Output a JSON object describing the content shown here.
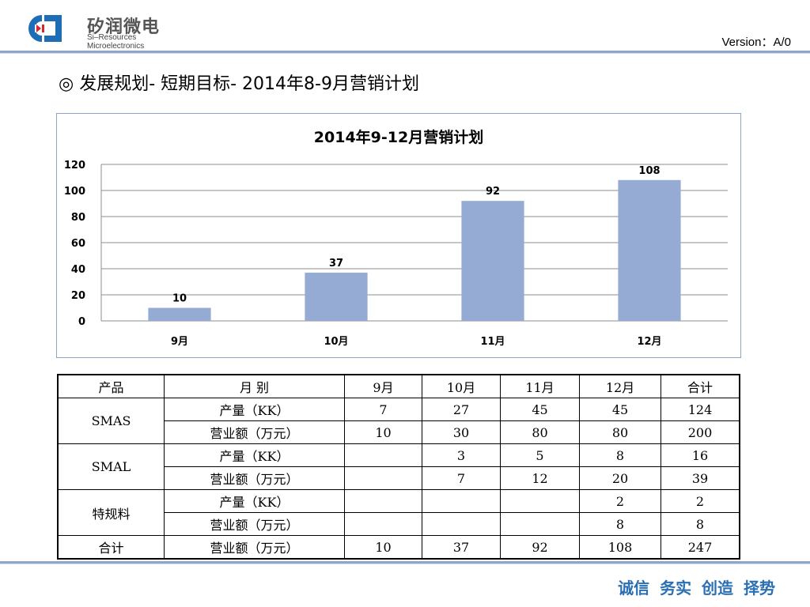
{
  "header": {
    "logo_cn": "矽润微电",
    "logo_en": "Si–Resources Microelectronics",
    "version": "Version：A/0"
  },
  "slide": {
    "title": "◎ 发展规划- 短期目标- 2014年8-9月营销计划"
  },
  "chart_data": {
    "type": "bar",
    "title": "2014年9-12月营销计划",
    "categories": [
      "9月",
      "10月",
      "11月",
      "12月"
    ],
    "values": [
      10,
      37,
      92,
      108
    ],
    "data_labels": [
      "10",
      "37",
      "92",
      "108"
    ],
    "ylim": [
      0,
      120
    ],
    "yticks": [
      "0",
      "20",
      "40",
      "60",
      "80",
      "100",
      "120"
    ],
    "xlabel": "",
    "ylabel": "",
    "grid": true,
    "legend": "none",
    "bar_color": "#95abd3"
  },
  "table": {
    "headers": [
      "产品",
      "月 别",
      "9月",
      "10月",
      "11月",
      "12月",
      "合计"
    ],
    "groups": [
      {
        "product": "SMAS",
        "rows": [
          {
            "metric": "产量（KK）",
            "m9": "7",
            "m10": "27",
            "m11": "45",
            "m12": "45",
            "total": "124"
          },
          {
            "metric": "营业额（万元）",
            "m9": "10",
            "m10": "30",
            "m11": "80",
            "m12": "80",
            "total": "200"
          }
        ]
      },
      {
        "product": "SMAL",
        "rows": [
          {
            "metric": "产量（KK）",
            "m9": "",
            "m10": "3",
            "m11": "5",
            "m12": "8",
            "total": "16"
          },
          {
            "metric": "营业额（万元）",
            "m9": "",
            "m10": "7",
            "m11": "12",
            "m12": "20",
            "total": "39"
          }
        ]
      },
      {
        "product": "特规料",
        "rows": [
          {
            "metric": "产量（KK）",
            "m9": "",
            "m10": "",
            "m11": "",
            "m12": "2",
            "total": "2"
          },
          {
            "metric": "营业额（万元）",
            "m9": "",
            "m10": "",
            "m11": "",
            "m12": "8",
            "total": "8"
          }
        ]
      }
    ],
    "total_row": {
      "label": "合计",
      "metric": "营业额（万元）",
      "m9": "10",
      "m10": "37",
      "m11": "92",
      "m12": "108",
      "total": "247"
    }
  },
  "footer": {
    "motto": "诚信 务实 创造 择势"
  },
  "colors": {
    "accent_rule": "#8ea7c9",
    "motto": "#2a6fb3",
    "logo_red": "#d7262e",
    "logo_blue": "#1e6db5"
  }
}
